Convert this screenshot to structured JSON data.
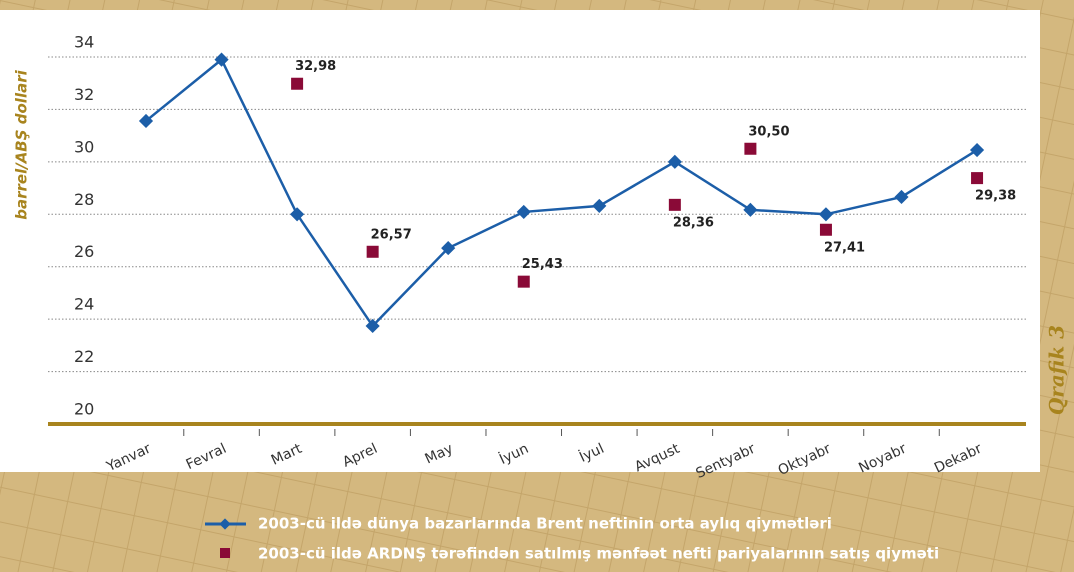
{
  "chart_data": {
    "type": "line",
    "y_label": "barrel/ABŞ dollari",
    "caption": "Qrafik 3",
    "categories": [
      "Yanvar",
      "Fevral",
      "Mart",
      "Aprel",
      "May",
      "İyun",
      "İyul",
      "Avqust",
      "Sentyabr",
      "Oktyabr",
      "Noyabr",
      "Dekabr"
    ],
    "series": [
      {
        "name": "2003-cü ildə dünya bazarlarında Brent neftinin orta aylıq qiymətləri",
        "color": "#1c5ea8",
        "values": [
          31.56,
          33.9,
          28.0,
          23.74,
          26.71,
          28.09,
          28.32,
          30.0,
          28.17,
          28.0,
          28.66,
          30.45
        ]
      },
      {
        "name": "2003-cü ildə ARDNŞ tərəfindən satılmış mənfəət nefti pariyalarının satış qiyməti",
        "color": "#8a0a37",
        "values": [
          null,
          null,
          32.98,
          26.57,
          null,
          25.43,
          null,
          28.36,
          30.5,
          27.41,
          null,
          29.38
        ],
        "value_labels": [
          null,
          null,
          "32,98",
          "26,57",
          null,
          "25,43",
          null,
          "28,36",
          "30,50",
          "27,41",
          null,
          "29,38"
        ]
      }
    ],
    "ylim": [
      20,
      34
    ],
    "yticks": [
      20,
      22,
      24,
      26,
      28,
      30,
      32,
      34
    ],
    "grid": true,
    "axis_color": "#a8841e"
  }
}
